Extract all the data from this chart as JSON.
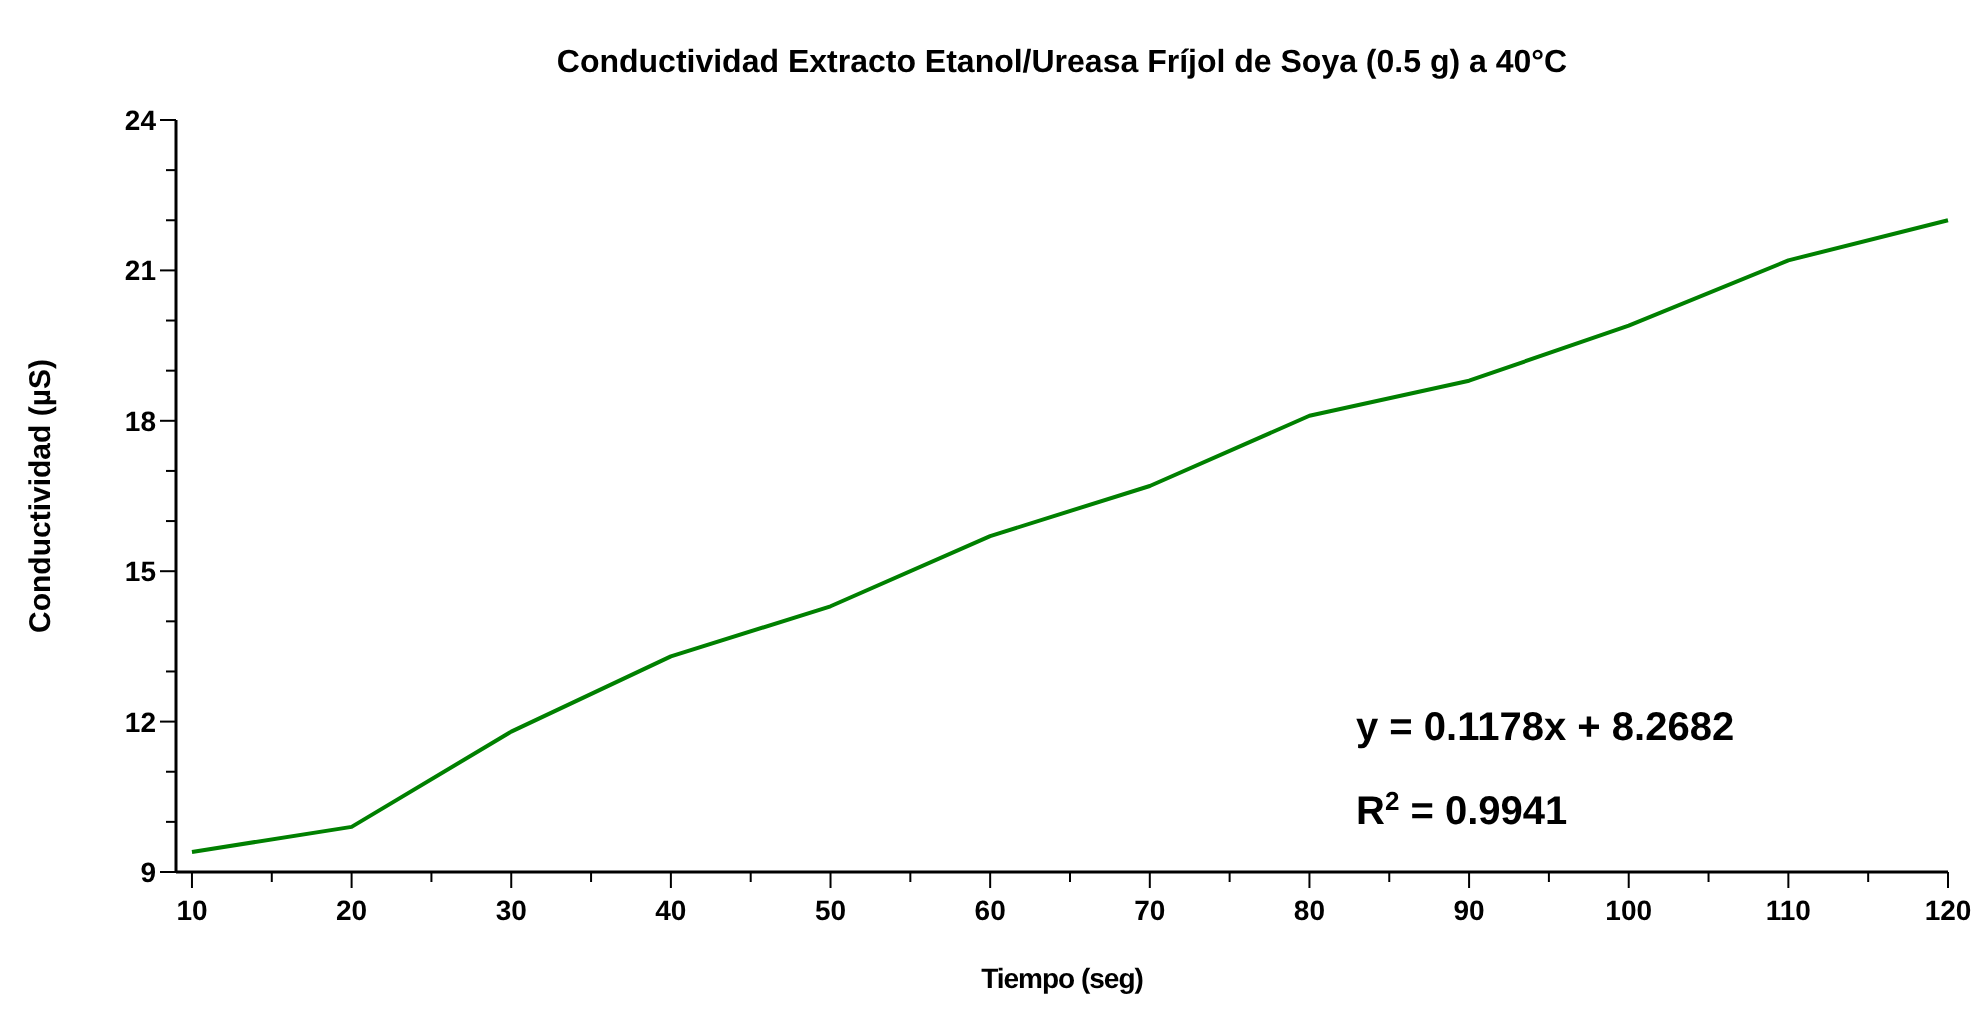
{
  "chart_data": {
    "type": "line",
    "title": "Conductividad Extracto Etanol/Ureasa Fríjol de Soya (0.5 g) a 40°C",
    "xlabel": "Tiempo (seg)",
    "ylabel": "Conductividad (µS)",
    "x": [
      10,
      20,
      30,
      40,
      50,
      60,
      70,
      80,
      90,
      100,
      110,
      120
    ],
    "series": [
      {
        "color": "#008000",
        "values": [
          9.4,
          9.9,
          11.8,
          13.3,
          14.3,
          15.7,
          16.7,
          18.1,
          18.8,
          19.9,
          21.2,
          22.0
        ]
      }
    ],
    "xlim": [
      9,
      120
    ],
    "ylim": [
      9,
      24
    ],
    "xticks": [
      10,
      {
        "value": 15,
        "label": null
      },
      20,
      {
        "value": 25,
        "label": null
      },
      30,
      {
        "value": 35,
        "label": null
      },
      40,
      {
        "value": 45,
        "label": null
      },
      50,
      {
        "value": 55,
        "label": null
      },
      60,
      {
        "value": 65,
        "label": null
      },
      70,
      {
        "value": 75,
        "label": null
      },
      80,
      {
        "value": 85,
        "label": null
      },
      90,
      {
        "value": 95,
        "label": null
      },
      100,
      {
        "value": 105,
        "label": null
      },
      110,
      {
        "value": 115,
        "label": null
      },
      120
    ],
    "yticks": [
      9,
      {
        "value": 10,
        "label": null
      },
      {
        "value": 11,
        "label": null
      },
      12,
      {
        "value": 13,
        "label": null
      },
      {
        "value": 14,
        "label": null
      },
      15,
      {
        "value": 16,
        "label": null
      },
      {
        "value": 17,
        "label": null
      },
      18,
      {
        "value": 19,
        "label": null
      },
      {
        "value": 20,
        "label": null
      },
      21,
      {
        "value": 22,
        "label": null
      },
      {
        "value": 23,
        "label": null
      },
      24
    ],
    "annotations": [
      "y = 0.1178x + 8.2682",
      "R$^{2}$ = 0.9941"
    ],
    "grid": false,
    "marker": "none",
    "line_style": "solid"
  }
}
